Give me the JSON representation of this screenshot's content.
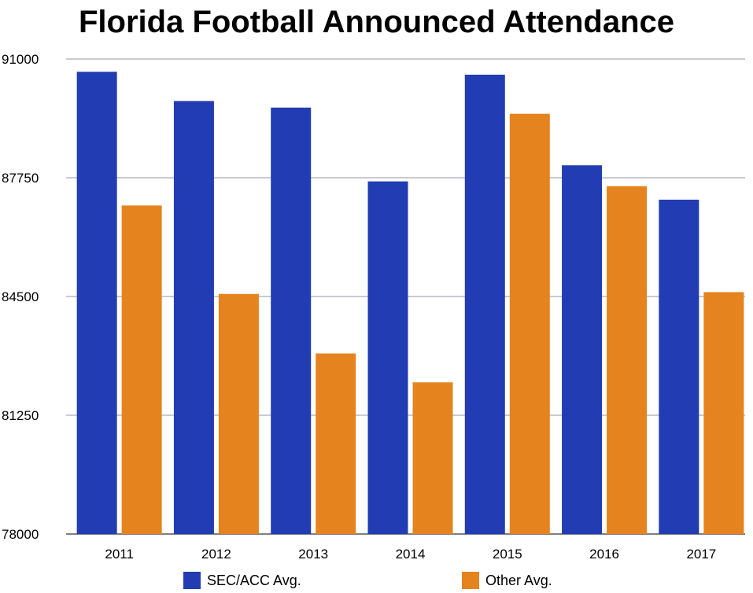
{
  "chart_data": {
    "type": "bar",
    "title": "Florida Football Announced Attendance",
    "categories": [
      "2011",
      "2012",
      "2013",
      "2014",
      "2015",
      "2016",
      "2017"
    ],
    "series": [
      {
        "name": "SEC/ACC Avg.",
        "color": "#223cb3",
        "values": [
          90650,
          89850,
          89670,
          87650,
          90570,
          88090,
          87150
        ]
      },
      {
        "name": "Other Avg.",
        "color": "#e5831f",
        "values": [
          86990,
          84570,
          82940,
          82150,
          89500,
          87520,
          84620
        ]
      }
    ],
    "ylim": [
      78000,
      91000
    ],
    "yticks": [
      "91000",
      "87750",
      "84500",
      "81250",
      "78000"
    ],
    "grid": true,
    "legend_position": "bottom"
  }
}
